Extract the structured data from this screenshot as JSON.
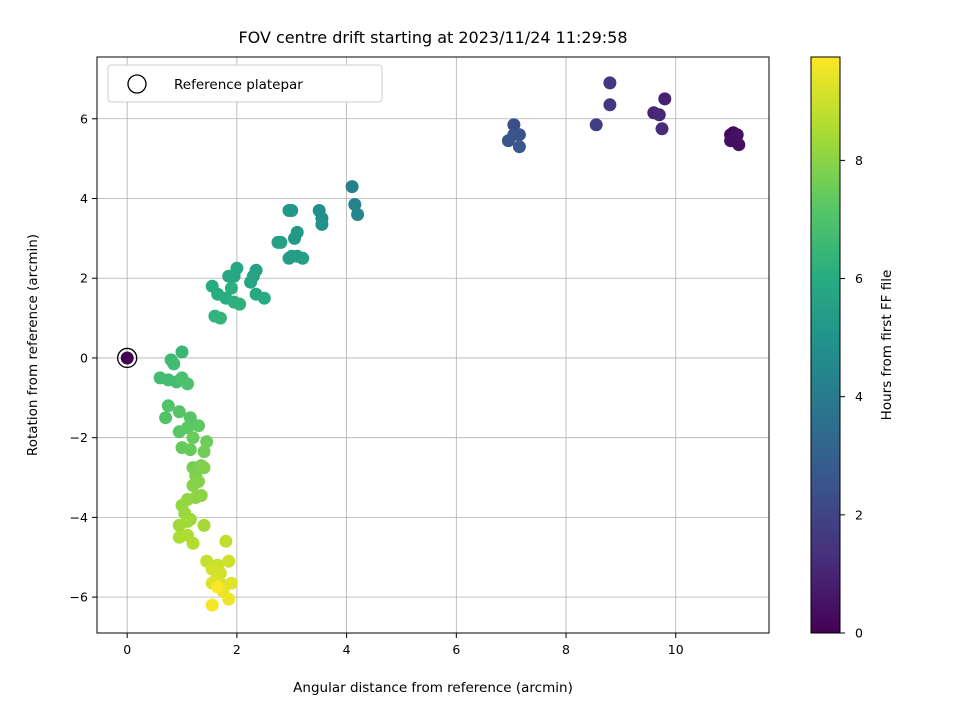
{
  "chart_data": {
    "type": "scatter",
    "title": "FOV centre drift starting at 2023/11/24 11:29:58",
    "xlabel": "Angular distance from reference (arcmin)",
    "ylabel": "Rotation from reference (arcmin)",
    "xlim": [
      -0.55,
      11.7
    ],
    "ylim": [
      -6.9,
      7.55
    ],
    "xticks": [
      0,
      2,
      4,
      6,
      8,
      10
    ],
    "yticks": [
      -6,
      -4,
      -2,
      0,
      2,
      4,
      6
    ],
    "grid": true,
    "legend": {
      "position": "top-left",
      "entries": [
        "Reference platepar"
      ]
    },
    "reference_point": {
      "x": 0,
      "y": 0
    },
    "colorbar": {
      "label": "Hours from first FF file",
      "min": 0,
      "max": 9.75,
      "ticks": [
        0,
        2,
        4,
        6,
        8
      ],
      "colormap": "viridis"
    },
    "points": [
      [
        0,
        0,
        0.0
      ],
      [
        11.0,
        5.6,
        0.2
      ],
      [
        11.05,
        5.65,
        0.25
      ],
      [
        11.1,
        5.5,
        0.3
      ],
      [
        11.15,
        5.35,
        0.35
      ],
      [
        11.0,
        5.45,
        0.4
      ],
      [
        11.12,
        5.6,
        0.45
      ],
      [
        9.8,
        6.5,
        0.9
      ],
      [
        9.6,
        6.15,
        1.0
      ],
      [
        9.7,
        6.1,
        1.1
      ],
      [
        9.75,
        5.75,
        1.2
      ],
      [
        8.8,
        6.9,
        1.5
      ],
      [
        8.8,
        6.35,
        1.6
      ],
      [
        8.55,
        5.85,
        1.8
      ],
      [
        7.05,
        5.85,
        2.3
      ],
      [
        7.15,
        5.6,
        2.4
      ],
      [
        7.05,
        5.6,
        2.5
      ],
      [
        6.95,
        5.45,
        2.6
      ],
      [
        7.15,
        5.3,
        2.7
      ],
      [
        4.1,
        4.3,
        4.2
      ],
      [
        4.15,
        3.85,
        4.3
      ],
      [
        4.2,
        3.6,
        4.4
      ],
      [
        3.5,
        3.7,
        4.8
      ],
      [
        3.55,
        3.5,
        4.85
      ],
      [
        3.55,
        3.35,
        4.9
      ],
      [
        2.95,
        3.7,
        5.1
      ],
      [
        3.0,
        3.7,
        5.15
      ],
      [
        3.1,
        3.15,
        5.2
      ],
      [
        3.05,
        3.0,
        5.25
      ],
      [
        3.0,
        2.55,
        5.3
      ],
      [
        2.95,
        2.5,
        5.35
      ],
      [
        3.1,
        2.55,
        5.4
      ],
      [
        3.2,
        2.5,
        5.45
      ],
      [
        2.75,
        2.9,
        5.5
      ],
      [
        2.8,
        2.9,
        5.55
      ],
      [
        2.35,
        2.2,
        5.6
      ],
      [
        2.3,
        2.05,
        5.65
      ],
      [
        2.25,
        1.9,
        5.7
      ],
      [
        2.0,
        2.25,
        5.75
      ],
      [
        1.95,
        2.05,
        5.8
      ],
      [
        1.85,
        2.05,
        5.85
      ],
      [
        2.35,
        1.6,
        5.9
      ],
      [
        2.5,
        1.5,
        5.95
      ],
      [
        1.55,
        1.8,
        6.0
      ],
      [
        1.65,
        1.6,
        6.05
      ],
      [
        1.8,
        1.5,
        6.1
      ],
      [
        1.9,
        1.75,
        6.15
      ],
      [
        1.95,
        1.4,
        6.2
      ],
      [
        2.05,
        1.35,
        6.25
      ],
      [
        1.6,
        1.05,
        6.3
      ],
      [
        1.7,
        1.0,
        6.35
      ],
      [
        1.0,
        0.15,
        6.5
      ],
      [
        0.8,
        -0.05,
        6.6
      ],
      [
        0.85,
        -0.15,
        6.65
      ],
      [
        0.6,
        -0.5,
        6.7
      ],
      [
        0.75,
        -0.55,
        6.75
      ],
      [
        0.9,
        -0.6,
        6.8
      ],
      [
        1.0,
        -0.5,
        6.85
      ],
      [
        1.1,
        -0.65,
        6.9
      ],
      [
        0.7,
        -1.5,
        7.0
      ],
      [
        0.75,
        -1.2,
        7.05
      ],
      [
        0.95,
        -1.35,
        7.1
      ],
      [
        1.15,
        -1.5,
        7.15
      ],
      [
        0.95,
        -1.85,
        7.2
      ],
      [
        1.1,
        -1.75,
        7.25
      ],
      [
        1.3,
        -1.7,
        7.3
      ],
      [
        1.0,
        -2.25,
        7.4
      ],
      [
        1.15,
        -2.3,
        7.45
      ],
      [
        1.2,
        -2.0,
        7.5
      ],
      [
        1.45,
        -2.1,
        7.55
      ],
      [
        1.4,
        -2.35,
        7.6
      ],
      [
        1.2,
        -2.75,
        7.7
      ],
      [
        1.35,
        -2.7,
        7.75
      ],
      [
        1.25,
        -2.95,
        7.8
      ],
      [
        1.4,
        -2.75,
        7.85
      ],
      [
        1.3,
        -3.1,
        7.9
      ],
      [
        1.2,
        -3.2,
        7.95
      ],
      [
        1.35,
        -3.45,
        8.0
      ],
      [
        1.25,
        -3.5,
        8.05
      ],
      [
        1.1,
        -3.55,
        8.1
      ],
      [
        1.0,
        -3.7,
        8.15
      ],
      [
        1.05,
        -3.9,
        8.2
      ],
      [
        1.15,
        -4.05,
        8.25
      ],
      [
        0.95,
        -4.2,
        8.3
      ],
      [
        1.1,
        -4.1,
        8.35
      ],
      [
        1.4,
        -4.2,
        8.4
      ],
      [
        0.95,
        -4.5,
        8.5
      ],
      [
        1.1,
        -4.45,
        8.55
      ],
      [
        1.2,
        -4.65,
        8.6
      ],
      [
        1.8,
        -4.6,
        8.8
      ],
      [
        1.45,
        -5.1,
        8.9
      ],
      [
        1.65,
        -5.2,
        8.95
      ],
      [
        1.85,
        -5.1,
        9.0
      ],
      [
        1.55,
        -5.3,
        9.05
      ],
      [
        1.7,
        -5.4,
        9.1
      ],
      [
        1.6,
        -5.6,
        9.15
      ],
      [
        1.75,
        -5.7,
        9.2
      ],
      [
        1.55,
        -5.65,
        9.25
      ],
      [
        1.9,
        -5.65,
        9.3
      ],
      [
        1.75,
        -5.85,
        9.4
      ],
      [
        1.85,
        -6.05,
        9.5
      ],
      [
        1.55,
        -6.2,
        9.6
      ],
      [
        1.65,
        -5.75,
        9.7
      ]
    ]
  }
}
